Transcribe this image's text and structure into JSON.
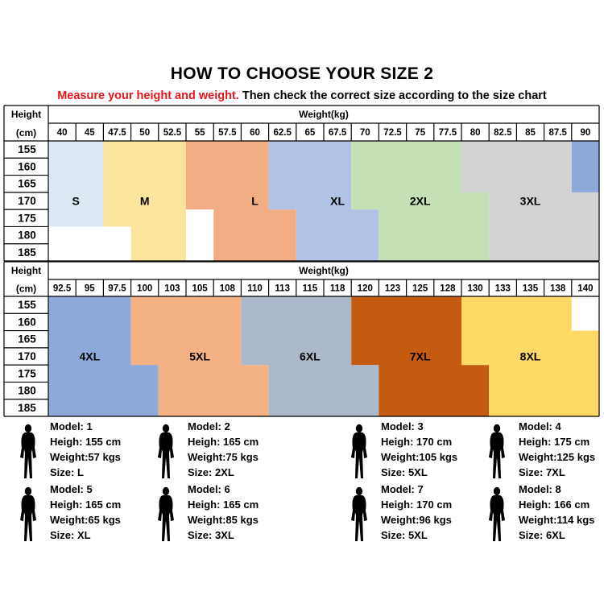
{
  "title": "HOW TO CHOOSE YOUR SIZE 2",
  "subtitle": {
    "red": "Measure your height and weight.",
    "black": "Then check the correct size according to the size chart"
  },
  "table1": {
    "height_label": "Height",
    "height_unit": "(cm)",
    "weight_label": "Weight(kg)",
    "weights": [
      "40",
      "45",
      "47.5",
      "50",
      "52.5",
      "55",
      "57.5",
      "60",
      "62.5",
      "65",
      "67.5",
      "70",
      "72.5",
      "75",
      "77.5",
      "80",
      "82.5",
      "85",
      "87.5",
      "90"
    ],
    "heights": [
      "155",
      "160",
      "165",
      "170",
      "175",
      "180",
      "185"
    ],
    "sizes": [
      {
        "label": "S",
        "color": "#dce9f5"
      },
      {
        "label": "M",
        "color": "#fbe49b"
      },
      {
        "label": "L",
        "color": "#f3ad85"
      },
      {
        "label": "XL",
        "color": "#b0c3e4"
      },
      {
        "label": "2XL",
        "color": "#c5e0b4"
      },
      {
        "label": "3XL",
        "color": "#d3d3d3"
      },
      {
        "label": "",
        "color": "#8eaadb"
      }
    ]
  },
  "table2": {
    "height_label": "Height",
    "height_unit": "(cm)",
    "weight_label": "Weight(kg)",
    "weights": [
      "92.5",
      "95",
      "97.5",
      "100",
      "103",
      "105",
      "108",
      "110",
      "113",
      "115",
      "118",
      "120",
      "123",
      "125",
      "128",
      "130",
      "133",
      "135",
      "138",
      "140"
    ],
    "heights": [
      "155",
      "160",
      "165",
      "170",
      "175",
      "180",
      "185"
    ],
    "sizes": [
      {
        "label": "4XL",
        "color": "#8eaadb"
      },
      {
        "label": "5XL",
        "color": "#f4b183"
      },
      {
        "label": "6XL",
        "color": "#acb9ca"
      },
      {
        "label": "7XL",
        "color": "#c55a11"
      },
      {
        "label": "8XL",
        "color": "#ffd966"
      }
    ]
  },
  "models": [
    {
      "model": "Model: 1",
      "height": "Heigh: 155 cm",
      "weight": "Weight:57 kgs",
      "size": "Size: L"
    },
    {
      "model": "Model: 2",
      "height": "Heigh: 165 cm",
      "weight": "Weight:75 kgs",
      "size": "Size: 2XL"
    },
    {
      "model": "Model: 3",
      "height": "Heigh: 170 cm",
      "weight": "Weight:105 kgs",
      "size": "Size: 5XL"
    },
    {
      "model": "Model: 4",
      "height": "Heigh: 175 cm",
      "weight": "Weight:125 kgs",
      "size": "Size: 7XL"
    },
    {
      "model": "Model: 5",
      "height": "Heigh: 165 cm",
      "weight": "Weight:65 kgs",
      "size": "Size: XL"
    },
    {
      "model": "Model: 6",
      "height": "Heigh: 165 cm",
      "weight": "Weight:85 kgs",
      "size": "Size: 3XL"
    },
    {
      "model": "Model: 7",
      "height": "Heigh: 170 cm",
      "weight": "Weight:96 kgs",
      "size": "Size: 5XL"
    },
    {
      "model": "Model: 8",
      "height": "Heigh: 166 cm",
      "weight": "Weight:114 kgs",
      "size": "Size: 6XL"
    }
  ]
}
